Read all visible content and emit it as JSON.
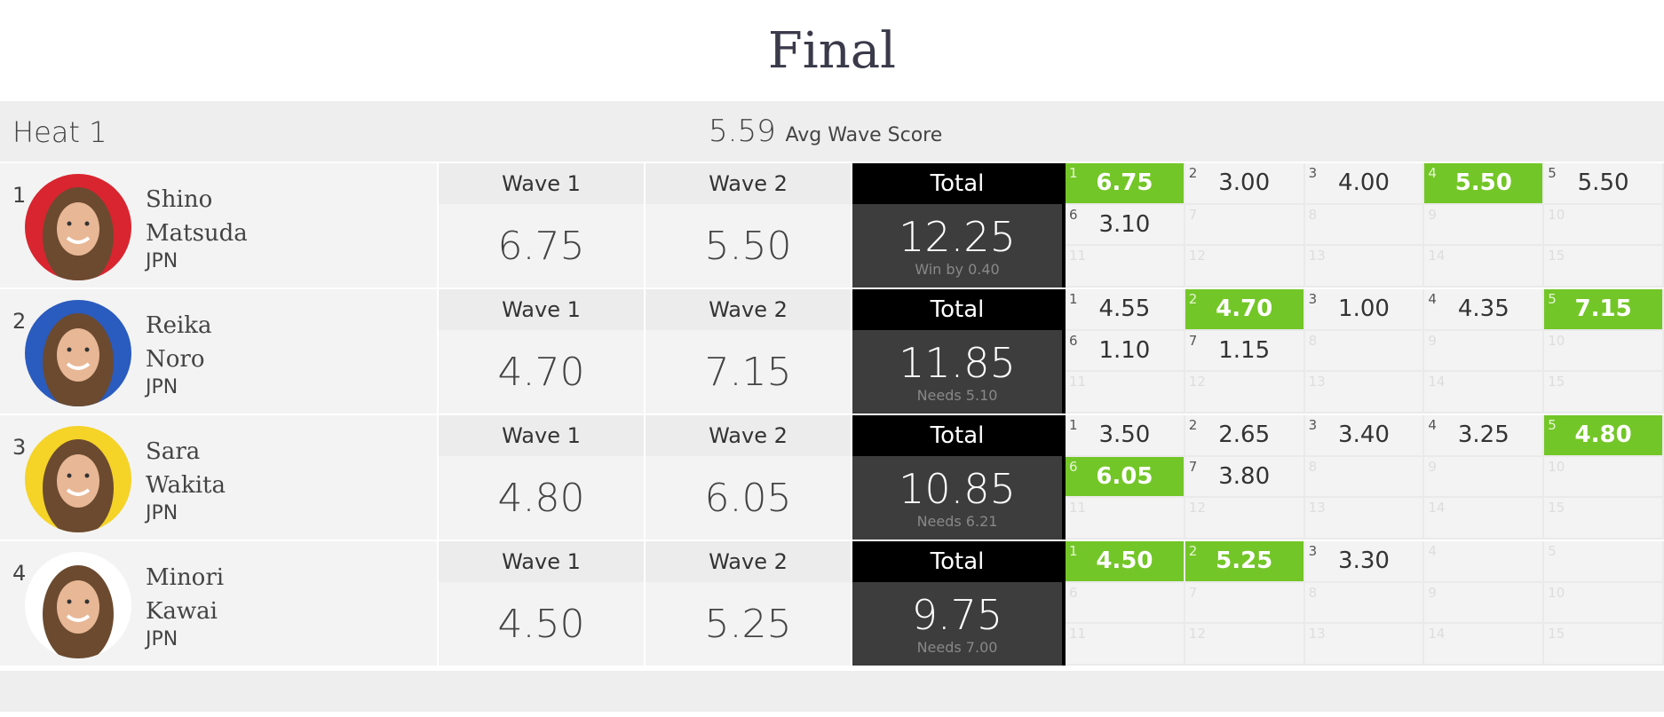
{
  "title": "Final",
  "heat": {
    "name": "Heat 1",
    "avg_score": "5.59",
    "avg_label": "Avg Wave Score"
  },
  "labels": {
    "wave1": "Wave 1",
    "wave2": "Wave 2",
    "total": "Total"
  },
  "colors": {
    "highlight": "#73c627",
    "total_header": "#000000",
    "total_body": "#3d3d3d"
  },
  "athletes": [
    {
      "rank": "1",
      "first": "Shino",
      "last": "Matsuda",
      "country": "JPN",
      "avatar_color": "#d9252f",
      "wave1": "6.75",
      "wave2": "5.50",
      "total": "12.25",
      "status": "Win by 0.40",
      "waves": [
        "6.75",
        "3.00",
        "4.00",
        "5.50",
        "5.50",
        "3.10"
      ],
      "best": [
        0,
        3
      ]
    },
    {
      "rank": "2",
      "first": "Reika",
      "last": "Noro",
      "country": "JPN",
      "avatar_color": "#2a5bbf",
      "wave1": "4.70",
      "wave2": "7.15",
      "total": "11.85",
      "status": "Needs 5.10",
      "waves": [
        "4.55",
        "4.70",
        "1.00",
        "4.35",
        "7.15",
        "1.10",
        "1.15"
      ],
      "best": [
        1,
        4
      ]
    },
    {
      "rank": "3",
      "first": "Sara",
      "last": "Wakita",
      "country": "JPN",
      "avatar_color": "#f5d327",
      "wave1": "4.80",
      "wave2": "6.05",
      "total": "10.85",
      "status": "Needs 6.21",
      "waves": [
        "3.50",
        "2.65",
        "3.40",
        "3.25",
        "4.80",
        "6.05",
        "3.80"
      ],
      "best": [
        4,
        5
      ]
    },
    {
      "rank": "4",
      "first": "Minori",
      "last": "Kawai",
      "country": "JPN",
      "avatar_color": "#ffffff",
      "wave1": "4.50",
      "wave2": "5.25",
      "total": "9.75",
      "status": "Needs 7.00",
      "waves": [
        "4.50",
        "5.25",
        "3.30"
      ],
      "best": [
        0,
        1
      ]
    }
  ]
}
